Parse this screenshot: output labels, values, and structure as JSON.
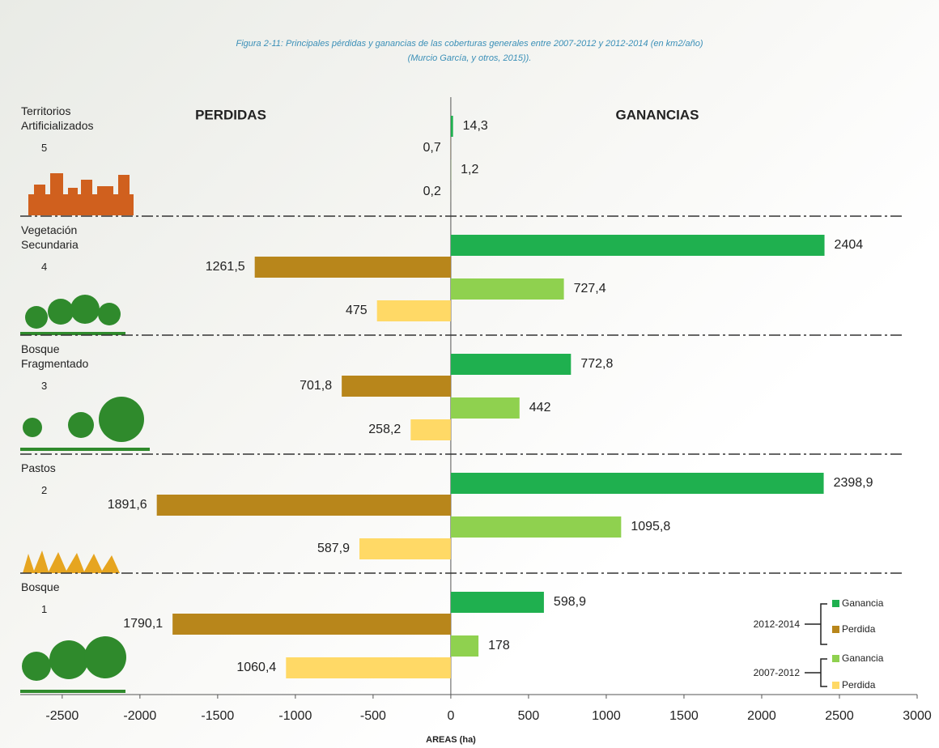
{
  "chart_data": {
    "type": "diverging_bar",
    "title": "Figura 2-11: Principales pérdidas y ganancias de las coberturas generales entre 2007-2012 y 2012-2014 (en km2/año)",
    "subtitle": "(Murcio García, y otros, 2015)).",
    "left_label": "PERDIDAS",
    "right_label": "GANANCIAS",
    "x_label": "AREAS (ha)",
    "categories": [
      "Territorios Artificializados",
      "Vegetación Secundaria",
      "Bosque Fragmentado",
      "Pastos",
      "Bosque"
    ],
    "category_numbers": [
      "5",
      "4",
      "3",
      "2",
      "1"
    ],
    "series": [
      {
        "name": "Ganancia",
        "group": "2012-2014",
        "color": "#1fb04f",
        "values": [
          14.3,
          2404,
          772.8,
          2398.9,
          598.9
        ],
        "value_labels": [
          "14,3",
          "2404",
          "772,8",
          "2398,9",
          "598,9"
        ]
      },
      {
        "name": "Perdida",
        "group": "2012-2014",
        "color": "#b8861b",
        "values": [
          -0.7,
          -1261.5,
          -701.8,
          -1891.6,
          -1790.1
        ],
        "value_labels": [
          "0,7",
          "1261,5",
          "701,8",
          "1891,6",
          "1790,1"
        ]
      },
      {
        "name": "Ganancia",
        "group": "2007-2012",
        "color": "#8fd14f",
        "values": [
          1.2,
          727.4,
          442,
          1095.8,
          178
        ],
        "value_labels": [
          "1,2",
          "727,4",
          "442",
          "1095,8",
          "178"
        ]
      },
      {
        "name": "Perdida",
        "group": "2007-2012",
        "color": "#ffd966",
        "values": [
          -0.2,
          -475,
          -258.2,
          -587.9,
          -1060.4
        ],
        "value_labels": [
          "0,2",
          "475",
          "258,2",
          "587,9",
          "1060,4"
        ]
      }
    ],
    "xlim": [
      -2770,
      3000
    ],
    "xticks": [
      -2500,
      -2000,
      -1500,
      -1000,
      -500,
      0,
      500,
      1000,
      1500,
      2000,
      2500,
      3000
    ]
  }
}
